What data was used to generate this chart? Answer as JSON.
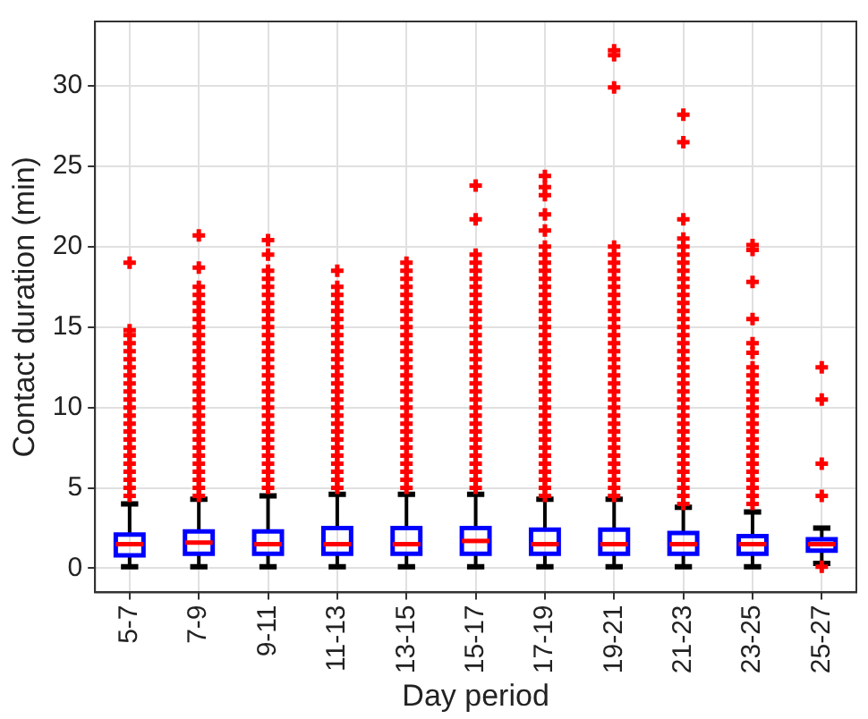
{
  "chart_data": {
    "type": "box",
    "xlabel": "Day period",
    "ylabel": "Contact duration (min)",
    "categories": [
      "5-7",
      "7-9",
      "9-11",
      "11-13",
      "13-15",
      "15-17",
      "17-19",
      "19-21",
      "21-23",
      "23-25",
      "25-27"
    ],
    "ylim": [
      -1.5,
      34
    ],
    "yticks": [
      0,
      5,
      10,
      15,
      20,
      25,
      30
    ],
    "grid": true,
    "legend": false,
    "marker": "cross",
    "series": [
      {
        "color": "#0000ff",
        "boxes": [
          {
            "low": 0.1,
            "q1": 0.8,
            "median": 1.5,
            "q3": 2.1,
            "high": 4.0,
            "outliers": [
              4.5,
              5,
              5.5,
              6,
              6.5,
              7,
              7.5,
              8,
              8.5,
              9,
              9.5,
              10,
              10.5,
              11,
              11.5,
              12,
              12.5,
              13,
              13.5,
              14,
              14.5,
              14.8,
              19.0
            ]
          },
          {
            "low": 0.1,
            "q1": 0.9,
            "median": 1.6,
            "q3": 2.3,
            "high": 4.3,
            "outliers": [
              4.5,
              5,
              5.5,
              6,
              6.5,
              7,
              7.5,
              8,
              8.5,
              9,
              9.5,
              10,
              10.5,
              11,
              11.5,
              12,
              12.5,
              13,
              13.5,
              14,
              14.5,
              15,
              15.5,
              16,
              16.5,
              17,
              17.5,
              18.7,
              20.7
            ]
          },
          {
            "low": 0.1,
            "q1": 0.9,
            "median": 1.5,
            "q3": 2.3,
            "high": 4.5,
            "outliers": [
              5,
              5.5,
              6,
              6.5,
              7,
              7.5,
              8,
              8.5,
              9,
              9.5,
              10,
              10.5,
              11,
              11.5,
              12,
              12.5,
              13,
              13.5,
              14,
              14.5,
              15,
              15.5,
              16,
              16.5,
              17,
              17.5,
              18,
              18.5,
              19.5,
              20.4
            ]
          },
          {
            "low": 0.1,
            "q1": 0.9,
            "median": 1.5,
            "q3": 2.5,
            "high": 4.6,
            "outliers": [
              5,
              5.5,
              6,
              6.5,
              7,
              7.5,
              8,
              8.5,
              9,
              9.5,
              10,
              10.5,
              11,
              11.5,
              12,
              12.5,
              13,
              13.5,
              14,
              14.5,
              15,
              15.5,
              16,
              16.5,
              17,
              17.5,
              18.5
            ]
          },
          {
            "low": 0.1,
            "q1": 0.9,
            "median": 1.5,
            "q3": 2.5,
            "high": 4.6,
            "outliers": [
              5,
              5.5,
              6,
              6.5,
              7,
              7.5,
              8,
              8.5,
              9,
              9.5,
              10,
              10.5,
              11,
              11.5,
              12,
              12.5,
              13,
              13.5,
              14,
              14.5,
              15,
              15.5,
              16,
              16.5,
              17,
              17.5,
              18,
              18.5,
              19.0
            ]
          },
          {
            "low": 0.1,
            "q1": 0.9,
            "median": 1.7,
            "q3": 2.5,
            "high": 4.6,
            "outliers": [
              5,
              5.5,
              6,
              6.5,
              7,
              7.5,
              8,
              8.5,
              9,
              9.5,
              10,
              10.5,
              11,
              11.5,
              12,
              12.5,
              13,
              13.5,
              14,
              14.5,
              15,
              15.5,
              16,
              16.5,
              17,
              17.5,
              18,
              18.5,
              19,
              19.5,
              21.7,
              23.8
            ]
          },
          {
            "low": 0.1,
            "q1": 0.9,
            "median": 1.5,
            "q3": 2.4,
            "high": 4.3,
            "outliers": [
              4.5,
              5,
              5.5,
              6,
              6.5,
              7,
              7.5,
              8,
              8.5,
              9,
              9.5,
              10,
              10.5,
              11,
              11.5,
              12,
              12.5,
              13,
              13.5,
              14,
              14.5,
              15,
              15.5,
              16,
              16.5,
              17,
              17.5,
              18,
              18.5,
              19,
              19.5,
              20,
              21,
              22,
              23.2,
              23.7,
              24.4
            ]
          },
          {
            "low": 0.1,
            "q1": 0.9,
            "median": 1.5,
            "q3": 2.4,
            "high": 4.3,
            "outliers": [
              4.5,
              5,
              5.5,
              6,
              6.5,
              7,
              7.5,
              8,
              8.5,
              9,
              9.5,
              10,
              10.5,
              11,
              11.5,
              12,
              12.5,
              13,
              13.5,
              14,
              14.5,
              15,
              15.5,
              16,
              16.5,
              17,
              17.5,
              18,
              18.5,
              19,
              19.5,
              20,
              29.9,
              31.9,
              32.2
            ]
          },
          {
            "low": 0.1,
            "q1": 0.9,
            "median": 1.5,
            "q3": 2.2,
            "high": 3.8,
            "outliers": [
              4,
              4.5,
              5,
              5.5,
              6,
              6.5,
              7,
              7.5,
              8,
              8.5,
              9,
              9.5,
              10,
              10.5,
              11,
              11.5,
              12,
              12.5,
              13,
              13.5,
              14,
              14.5,
              15,
              15.5,
              16,
              16.5,
              17,
              17.5,
              18,
              18.5,
              19,
              19.5,
              20,
              20.5,
              21.7,
              26.5,
              28.2
            ]
          },
          {
            "low": 0.1,
            "q1": 0.9,
            "median": 1.5,
            "q3": 2.0,
            "high": 3.5,
            "outliers": [
              4,
              4.5,
              5,
              5.5,
              6,
              6.5,
              7,
              7.5,
              8,
              8.5,
              9,
              9.5,
              10,
              10.5,
              11,
              11.5,
              12,
              12.5,
              13.4,
              14,
              15.5,
              17.8,
              19.8,
              20.1
            ]
          },
          {
            "low": 0.3,
            "q1": 1.1,
            "median": 1.5,
            "q3": 1.8,
            "high": 2.5,
            "outliers": [
              0.1,
              4.5,
              6.5,
              10.5,
              12.5
            ]
          }
        ]
      }
    ]
  }
}
